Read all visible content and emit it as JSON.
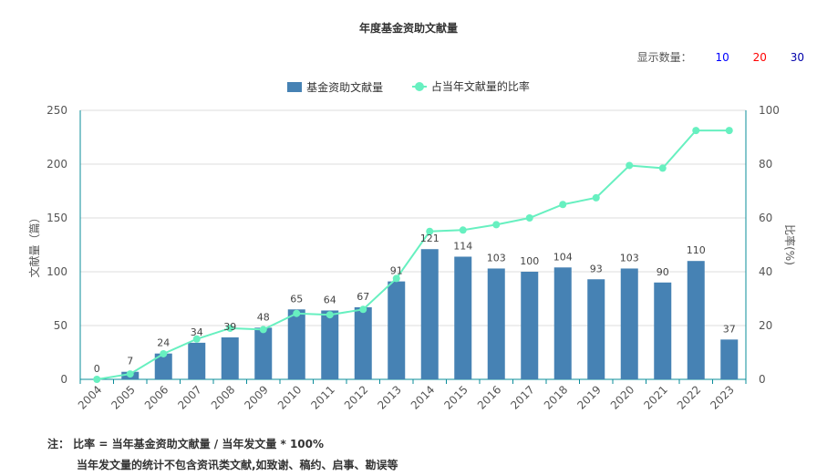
{
  "title": "年度基金资助文献量",
  "count_selector": {
    "label": "显示数量：",
    "options": [
      {
        "label": "10",
        "color": "#0000ff"
      },
      {
        "label": "20",
        "color": "#ff0000"
      },
      {
        "label": "30",
        "color": "#0000aa"
      }
    ]
  },
  "legend": {
    "bar_label": "基金资助文献量",
    "line_label": "占当年文献量的比率"
  },
  "colors": {
    "bar": "#4682b4",
    "line": "#67f0c0",
    "axis": "#0a8c9a",
    "grid": "#dddddd"
  },
  "notes": {
    "line1": "注：  比率 = 当年基金资助文献量 / 当年发文量 * 100%",
    "line2": "当年发文量的统计不包含资讯类文献,如致谢、稿约、启事、勘误等"
  },
  "chart_data": {
    "type": "bar",
    "categories": [
      "2004",
      "2005",
      "2006",
      "2007",
      "2008",
      "2009",
      "2010",
      "2011",
      "2012",
      "2013",
      "2014",
      "2015",
      "2016",
      "2017",
      "2018",
      "2019",
      "2020",
      "2021",
      "2022",
      "2023"
    ],
    "series": [
      {
        "name": "基金资助文献量",
        "type": "bar",
        "axis": "left",
        "values": [
          0,
          7,
          24,
          34,
          39,
          48,
          65,
          64,
          67,
          91,
          121,
          114,
          103,
          100,
          104,
          93,
          103,
          90,
          110,
          37
        ]
      },
      {
        "name": "占当年文献量的比率",
        "type": "line",
        "axis": "right",
        "values": [
          0,
          2,
          9.5,
          15,
          19,
          18.5,
          24.5,
          24,
          26,
          37.5,
          55,
          55.5,
          57.5,
          60,
          65,
          67.5,
          79.5,
          78.5,
          92.5,
          92.5
        ]
      }
    ],
    "ylabel": "文献量（篇）",
    "y2label": "比率(%)",
    "ylim": [
      0,
      250
    ],
    "yticks": [
      0,
      50,
      100,
      150,
      200,
      250
    ],
    "y2lim": [
      0,
      100
    ],
    "y2ticks": [
      0,
      20,
      40,
      60,
      80,
      100
    ],
    "grid": true,
    "legend_position": "top-center"
  }
}
